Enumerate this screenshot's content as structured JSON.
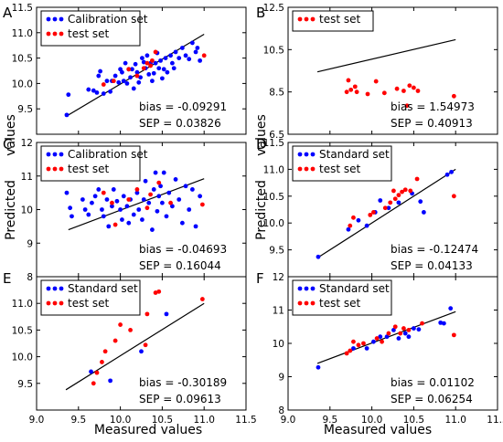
{
  "figure": {
    "xlabel": "Measured values",
    "ylabel_line1": "Predicted",
    "ylabel_line2": "values"
  },
  "colors": {
    "calibration": "#0000ff",
    "test": "#ff0000",
    "fit": "#000000"
  },
  "chart_data": [
    {
      "id": "A",
      "type": "scatter",
      "xlim": [
        9.0,
        11.5
      ],
      "ylim": [
        9.0,
        11.5
      ],
      "xticks": [
        9.0,
        9.5,
        10.0,
        10.5,
        11.0,
        11.5
      ],
      "yticks": [
        "9.5",
        "10.0",
        "10.5",
        "11.0",
        "11.5"
      ],
      "show_xticks": false,
      "legend": [
        "Calibration set",
        "test set"
      ],
      "bias": "bias = -0.09291",
      "sep": "SEP = 0.03826",
      "line": [
        [
          9.35,
          9.35
        ],
        [
          11.0,
          10.97
        ]
      ],
      "series": [
        {
          "name": "Calibration set",
          "color": "blue",
          "points": [
            [
              9.36,
              9.38
            ],
            [
              9.38,
              9.78
            ],
            [
              9.62,
              9.88
            ],
            [
              9.68,
              9.86
            ],
            [
              9.72,
              9.82
            ],
            [
              9.74,
              10.15
            ],
            [
              9.76,
              10.24
            ],
            [
              9.8,
              9.8
            ],
            [
              9.84,
              10.05
            ],
            [
              9.88,
              9.84
            ],
            [
              9.9,
              10.05
            ],
            [
              9.94,
              10.15
            ],
            [
              9.98,
              10.02
            ],
            [
              10.0,
              10.28
            ],
            [
              10.02,
              10.22
            ],
            [
              10.04,
              10.05
            ],
            [
              10.06,
              10.4
            ],
            [
              10.08,
              10.0
            ],
            [
              10.1,
              10.28
            ],
            [
              10.12,
              10.12
            ],
            [
              10.14,
              10.28
            ],
            [
              10.16,
              9.9
            ],
            [
              10.18,
              10.38
            ],
            [
              10.2,
              10.22
            ],
            [
              10.22,
              10.02
            ],
            [
              10.24,
              10.12
            ],
            [
              10.26,
              10.5
            ],
            [
              10.28,
              10.42
            ],
            [
              10.3,
              10.3
            ],
            [
              10.32,
              10.55
            ],
            [
              10.34,
              10.18
            ],
            [
              10.36,
              10.4
            ],
            [
              10.38,
              10.05
            ],
            [
              10.4,
              10.2
            ],
            [
              10.42,
              10.4
            ],
            [
              10.44,
              10.6
            ],
            [
              10.46,
              10.3
            ],
            [
              10.48,
              10.45
            ],
            [
              10.5,
              10.1
            ],
            [
              10.52,
              10.28
            ],
            [
              10.54,
              10.5
            ],
            [
              10.56,
              10.22
            ],
            [
              10.6,
              10.55
            ],
            [
              10.62,
              10.4
            ],
            [
              10.64,
              10.3
            ],
            [
              10.66,
              10.62
            ],
            [
              10.7,
              10.5
            ],
            [
              10.74,
              10.7
            ],
            [
              10.78,
              10.55
            ],
            [
              10.82,
              10.48
            ],
            [
              10.86,
              10.8
            ],
            [
              10.9,
              10.62
            ],
            [
              10.92,
              10.7
            ],
            [
              10.95,
              10.45
            ]
          ]
        },
        {
          "name": "test set",
          "color": "red",
          "points": [
            [
              9.8,
              9.98
            ],
            [
              9.92,
              10.05
            ],
            [
              10.1,
              10.28
            ],
            [
              10.2,
              10.15
            ],
            [
              10.28,
              10.3
            ],
            [
              10.32,
              10.4
            ],
            [
              10.36,
              10.35
            ],
            [
              10.38,
              10.45
            ],
            [
              10.42,
              10.62
            ],
            [
              11.0,
              10.55
            ]
          ]
        }
      ]
    },
    {
      "id": "B",
      "type": "scatter",
      "xlim": [
        9.0,
        11.5
      ],
      "ylim": [
        6.5,
        12.5
      ],
      "xticks": [
        9.0,
        9.5,
        10.0,
        10.5,
        11.0,
        11.5
      ],
      "yticks": [
        "6.5",
        "8.5",
        "10.5",
        "12.5"
      ],
      "show_xticks": false,
      "legend": [
        "test set"
      ],
      "bias": "bias = 1.54973",
      "sep": "SEP = 0.40913",
      "line": [
        [
          9.35,
          9.45
        ],
        [
          11.0,
          10.97
        ]
      ],
      "series": [
        {
          "name": "test set",
          "color": "red",
          "points": [
            [
              9.7,
              8.5
            ],
            [
              9.72,
              9.05
            ],
            [
              9.75,
              8.6
            ],
            [
              9.8,
              8.75
            ],
            [
              9.82,
              8.5
            ],
            [
              9.95,
              8.4
            ],
            [
              10.05,
              9.0
            ],
            [
              10.15,
              8.45
            ],
            [
              10.3,
              8.65
            ],
            [
              10.38,
              8.55
            ],
            [
              10.42,
              7.85
            ],
            [
              10.45,
              8.8
            ],
            [
              10.5,
              8.7
            ],
            [
              10.55,
              8.55
            ],
            [
              10.98,
              8.3
            ]
          ]
        }
      ]
    },
    {
      "id": "C",
      "type": "scatter",
      "xlim": [
        9.0,
        11.5
      ],
      "ylim": [
        8.0,
        12.0
      ],
      "xticks": [
        9.0,
        9.5,
        10.0,
        10.5,
        11.0,
        11.5
      ],
      "yticks": [
        "8",
        "9",
        "10",
        "11",
        "12"
      ],
      "show_xticks": false,
      "legend": [
        "Calibration set",
        "test set"
      ],
      "bias": "bias = -0.04693",
      "sep": "SEP = 0.16044",
      "line": [
        [
          9.38,
          9.4
        ],
        [
          11.0,
          10.92
        ]
      ],
      "series": [
        {
          "name": "Calibration set",
          "color": "blue",
          "points": [
            [
              9.36,
              10.5
            ],
            [
              9.4,
              10.05
            ],
            [
              9.42,
              9.8
            ],
            [
              9.55,
              10.3
            ],
            [
              9.58,
              10.0
            ],
            [
              9.62,
              9.85
            ],
            [
              9.66,
              10.2
            ],
            [
              9.7,
              10.4
            ],
            [
              9.74,
              10.6
            ],
            [
              9.78,
              10.0
            ],
            [
              9.8,
              9.8
            ],
            [
              9.84,
              10.3
            ],
            [
              9.86,
              9.5
            ],
            [
              9.9,
              10.1
            ],
            [
              9.92,
              10.6
            ],
            [
              9.96,
              10.25
            ],
            [
              10.0,
              10.0
            ],
            [
              10.02,
              9.7
            ],
            [
              10.04,
              10.4
            ],
            [
              10.08,
              10.1
            ],
            [
              10.1,
              9.6
            ],
            [
              10.12,
              10.3
            ],
            [
              10.16,
              9.85
            ],
            [
              10.2,
              10.5
            ],
            [
              10.22,
              10.0
            ],
            [
              10.26,
              9.7
            ],
            [
              10.28,
              10.3
            ],
            [
              10.3,
              10.85
            ],
            [
              10.34,
              10.2
            ],
            [
              10.38,
              9.4
            ],
            [
              10.4,
              10.6
            ],
            [
              10.42,
              11.1
            ],
            [
              10.44,
              9.95
            ],
            [
              10.46,
              10.4
            ],
            [
              10.48,
              10.7
            ],
            [
              10.5,
              10.2
            ],
            [
              10.52,
              11.1
            ],
            [
              10.55,
              9.8
            ],
            [
              10.58,
              10.5
            ],
            [
              10.62,
              10.1
            ],
            [
              10.66,
              10.9
            ],
            [
              10.7,
              10.3
            ],
            [
              10.74,
              9.6
            ],
            [
              10.78,
              10.7
            ],
            [
              10.82,
              10.0
            ],
            [
              10.86,
              10.6
            ],
            [
              10.9,
              9.5
            ],
            [
              10.95,
              10.4
            ]
          ]
        },
        {
          "name": "test set",
          "color": "red",
          "points": [
            [
              9.8,
              10.5
            ],
            [
              9.9,
              10.2
            ],
            [
              9.94,
              9.55
            ],
            [
              10.1,
              10.3
            ],
            [
              10.2,
              10.6
            ],
            [
              10.32,
              10.05
            ],
            [
              10.36,
              10.45
            ],
            [
              10.46,
              10.8
            ],
            [
              10.6,
              10.2
            ],
            [
              10.98,
              10.15
            ]
          ]
        }
      ]
    },
    {
      "id": "D",
      "type": "scatter",
      "xlim": [
        9.0,
        11.5
      ],
      "ylim": [
        9.0,
        11.5
      ],
      "xticks": [
        9.0,
        9.5,
        10.0,
        10.5,
        11.0,
        11.5
      ],
      "yticks": [
        "9.5",
        "10.0",
        "10.5",
        "11.0",
        "11.5"
      ],
      "show_xticks": false,
      "legend": [
        "Standard set",
        "test set"
      ],
      "bias": "bias = -0.12474",
      "sep": "SEP = 0.04133",
      "line": [
        [
          9.35,
          9.35
        ],
        [
          11.0,
          11.0
        ]
      ],
      "series": [
        {
          "name": "Standard set",
          "color": "blue",
          "points": [
            [
              9.36,
              9.37
            ],
            [
              9.72,
              9.88
            ],
            [
              9.84,
              10.05
            ],
            [
              9.94,
              9.95
            ],
            [
              10.04,
              10.2
            ],
            [
              10.1,
              10.42
            ],
            [
              10.2,
              10.28
            ],
            [
              10.32,
              10.38
            ],
            [
              10.48,
              10.55
            ],
            [
              10.58,
              10.4
            ],
            [
              10.62,
              10.2
            ],
            [
              10.9,
              10.9
            ],
            [
              10.95,
              10.95
            ]
          ]
        },
        {
          "name": "test set",
          "color": "red",
          "points": [
            [
              9.74,
              9.95
            ],
            [
              9.78,
              10.1
            ],
            [
              9.98,
              10.15
            ],
            [
              10.02,
              10.2
            ],
            [
              10.16,
              10.28
            ],
            [
              10.22,
              10.38
            ],
            [
              10.26,
              10.6
            ],
            [
              10.28,
              10.45
            ],
            [
              10.32,
              10.52
            ],
            [
              10.36,
              10.58
            ],
            [
              10.4,
              10.62
            ],
            [
              10.46,
              10.6
            ],
            [
              10.54,
              10.82
            ],
            [
              10.98,
              10.5
            ]
          ]
        }
      ]
    },
    {
      "id": "E",
      "type": "scatter",
      "xlim": [
        9.0,
        11.5
      ],
      "ylim": [
        9.0,
        11.5
      ],
      "xticks": [
        9.0,
        9.5,
        10.0,
        10.5,
        11.0,
        11.5
      ],
      "yticks": [
        "9.5",
        "10.0",
        "10.5",
        "11.0"
      ],
      "show_xticks": true,
      "legend": [
        "Standard set",
        "test set"
      ],
      "bias": "bias = -0.30189",
      "sep": "SEP = 0.09613",
      "line": [
        [
          9.35,
          9.38
        ],
        [
          11.0,
          11.0
        ]
      ],
      "series": [
        {
          "name": "Standard set",
          "color": "blue",
          "points": [
            [
              9.65,
              9.72
            ],
            [
              9.88,
              9.55
            ],
            [
              10.25,
              10.1
            ],
            [
              10.55,
              10.8
            ]
          ]
        },
        {
          "name": "test set",
          "color": "red",
          "points": [
            [
              9.68,
              9.5
            ],
            [
              9.72,
              9.7
            ],
            [
              9.78,
              9.9
            ],
            [
              9.82,
              10.1
            ],
            [
              9.94,
              10.3
            ],
            [
              10.0,
              10.6
            ],
            [
              10.12,
              10.5
            ],
            [
              10.3,
              10.22
            ],
            [
              10.32,
              10.8
            ],
            [
              10.42,
              11.2
            ],
            [
              10.46,
              11.22
            ],
            [
              10.98,
              11.08
            ]
          ]
        }
      ]
    },
    {
      "id": "F",
      "type": "scatter",
      "xlim": [
        9.0,
        11.5
      ],
      "ylim": [
        8.0,
        12.0
      ],
      "xticks": [
        9.0,
        9.5,
        10.0,
        10.5,
        11.0,
        11.5
      ],
      "yticks": [
        "8",
        "9",
        "10",
        "11",
        "12"
      ],
      "show_xticks": true,
      "legend": [
        "Standard set",
        "test set"
      ],
      "bias": "bias = 0.01102",
      "sep": "SEP = 0.06254",
      "line": [
        [
          9.35,
          9.4
        ],
        [
          11.0,
          10.95
        ]
      ],
      "series": [
        {
          "name": "Standard set",
          "color": "blue",
          "points": [
            [
              9.36,
              9.28
            ],
            [
              9.78,
              9.85
            ],
            [
              9.94,
              9.85
            ],
            [
              10.02,
              10.05
            ],
            [
              10.1,
              10.2
            ],
            [
              10.18,
              10.2
            ],
            [
              10.26,
              10.4
            ],
            [
              10.32,
              10.15
            ],
            [
              10.4,
              10.3
            ],
            [
              10.44,
              10.2
            ],
            [
              10.5,
              10.45
            ],
            [
              10.56,
              10.42
            ],
            [
              10.82,
              10.62
            ],
            [
              10.86,
              10.6
            ],
            [
              10.94,
              11.05
            ]
          ]
        },
        {
          "name": "test set",
          "color": "red",
          "points": [
            [
              9.7,
              9.7
            ],
            [
              9.74,
              9.78
            ],
            [
              9.78,
              10.05
            ],
            [
              9.84,
              9.95
            ],
            [
              9.9,
              10.0
            ],
            [
              10.06,
              10.15
            ],
            [
              10.12,
              10.05
            ],
            [
              10.2,
              10.3
            ],
            [
              10.28,
              10.5
            ],
            [
              10.34,
              10.3
            ],
            [
              10.38,
              10.45
            ],
            [
              10.44,
              10.4
            ],
            [
              10.6,
              10.6
            ],
            [
              10.98,
              10.25
            ]
          ]
        }
      ]
    }
  ]
}
